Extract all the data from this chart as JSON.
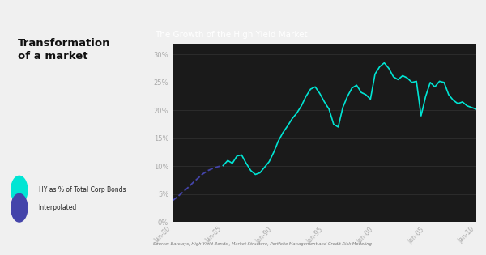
{
  "title": "The Growth of the High Yield Market",
  "source_text": "Source: Barclays, High Yield Bonds , Market Structure, Portfolio Management and Credit Risk Modeling",
  "fig_bg": "#f0f0f0",
  "dark_bg": "#1a1a1a",
  "title_color": "#ffffff",
  "tick_color": "#aaaaaa",
  "grid_color": "#333333",
  "cyan_color": "#00e5d4",
  "dashed_color": "#4444aa",
  "left_title": "Transformation\nof a market",
  "legend_hy": "HY as % of Total Corp Bonds",
  "legend_interp": "Interpolated",
  "x_labels": [
    "Jan-80",
    "Jan-85",
    "Jan-90",
    "Jan-95",
    "Jan-00",
    "Jan-05",
    "Jan-10"
  ],
  "ylim": [
    0,
    32
  ],
  "yticks": [
    0,
    5,
    10,
    15,
    20,
    25,
    30
  ],
  "ytick_labels": [
    "0%",
    "5%",
    "10%",
    "15%",
    "20%",
    "25%",
    "30%"
  ],
  "interp_y": [
    3.8,
    4.5,
    5.3,
    6.1,
    7.0,
    7.8,
    8.6,
    9.2,
    9.6,
    9.9,
    10.1
  ],
  "solid_data": [
    10.1,
    11.0,
    10.5,
    11.8,
    12.0,
    10.5,
    9.2,
    8.5,
    8.8,
    9.8,
    10.8,
    12.5,
    14.5,
    16.0,
    17.2,
    18.5,
    19.5,
    20.8,
    22.5,
    23.8,
    24.2,
    23.0,
    21.5,
    20.2,
    17.5,
    17.0,
    20.5,
    22.5,
    24.0,
    24.5,
    23.2,
    22.8,
    22.0,
    26.5,
    27.8,
    28.5,
    27.5,
    26.0,
    25.5,
    26.2,
    25.8,
    25.0,
    25.2,
    19.0,
    22.5,
    25.0,
    24.2,
    25.2,
    25.0,
    22.8,
    21.8,
    21.2,
    21.5,
    20.8,
    20.5,
    20.2
  ]
}
